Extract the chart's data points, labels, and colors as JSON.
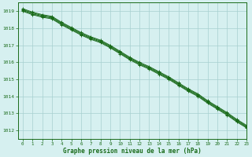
{
  "title": "Graphe pression niveau de la mer (hPa)",
  "bg_color": "#d6f0f0",
  "grid_color": "#a8d0d0",
  "line_color": "#1a6b1a",
  "xlim": [
    -0.5,
    23
  ],
  "ylim": [
    1011.5,
    1019.5
  ],
  "xticks": [
    0,
    1,
    2,
    3,
    4,
    5,
    6,
    7,
    8,
    9,
    10,
    11,
    12,
    13,
    14,
    15,
    16,
    17,
    18,
    19,
    20,
    21,
    22,
    23
  ],
  "yticks": [
    1012,
    1013,
    1014,
    1015,
    1016,
    1017,
    1018,
    1019
  ],
  "series": [
    [
      1019.05,
      1018.85,
      1018.7,
      1018.6,
      1018.25,
      1017.95,
      1017.65,
      1017.4,
      1017.2,
      1016.9,
      1016.55,
      1016.2,
      1015.9,
      1015.65,
      1015.35,
      1015.05,
      1014.7,
      1014.35,
      1014.05,
      1013.65,
      1013.3,
      1012.95,
      1012.55,
      1012.2
    ],
    [
      1019.1,
      1018.9,
      1018.75,
      1018.65,
      1018.3,
      1018.0,
      1017.7,
      1017.45,
      1017.25,
      1016.95,
      1016.6,
      1016.25,
      1015.95,
      1015.7,
      1015.4,
      1015.1,
      1014.75,
      1014.4,
      1014.1,
      1013.7,
      1013.35,
      1013.0,
      1012.6,
      1012.25
    ],
    [
      1019.15,
      1018.95,
      1018.8,
      1018.7,
      1018.35,
      1018.05,
      1017.75,
      1017.5,
      1017.3,
      1017.0,
      1016.65,
      1016.3,
      1016.0,
      1015.75,
      1015.45,
      1015.15,
      1014.8,
      1014.45,
      1014.15,
      1013.75,
      1013.4,
      1013.05,
      1012.65,
      1012.3
    ],
    [
      1019.0,
      1018.8,
      1018.65,
      1018.55,
      1018.2,
      1017.9,
      1017.6,
      1017.35,
      1017.15,
      1016.85,
      1016.5,
      1016.15,
      1015.85,
      1015.6,
      1015.3,
      1015.0,
      1014.65,
      1014.3,
      1014.0,
      1013.6,
      1013.25,
      1012.9,
      1012.5,
      1012.15
    ]
  ]
}
